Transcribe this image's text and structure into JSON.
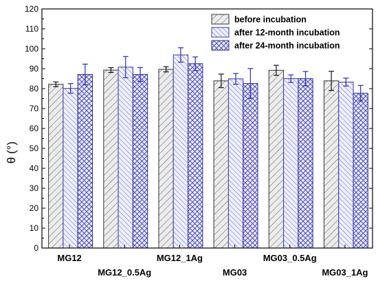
{
  "chart_data": {
    "type": "bar",
    "ylabel": "θ (°)",
    "xlabel": "",
    "ylim": [
      0,
      120
    ],
    "yticks": [
      0,
      10,
      20,
      30,
      40,
      50,
      60,
      70,
      80,
      90,
      100,
      110,
      120
    ],
    "categories": [
      "MG12",
      "MG12_0.5Ag",
      "MG12_1Ag",
      "MG03",
      "MG03_0.5Ag",
      "MG03_1Ag"
    ],
    "series": [
      {
        "name": "before incubation",
        "values": [
          82.2,
          89.3,
          89.7,
          83.9,
          89.2,
          83.9
        ],
        "errors": [
          1.2,
          1.2,
          1.3,
          3.4,
          2.5,
          4.8
        ],
        "color": "#4d4d4d"
      },
      {
        "name": "after 12-month incubation",
        "values": [
          80.1,
          90.8,
          96.9,
          84.9,
          85.0,
          83.3
        ],
        "errors": [
          2.4,
          5.3,
          3.6,
          2.7,
          1.9,
          2.0
        ],
        "color": "#4040b8"
      },
      {
        "name": "after 24-month incubation",
        "values": [
          87.1,
          87.1,
          92.5,
          82.6,
          85.0,
          77.7
        ],
        "errors": [
          5.2,
          3.5,
          3.4,
          7.5,
          3.6,
          3.9
        ],
        "color": "#202098"
      }
    ],
    "legend_position": "top-right",
    "grid": false
  }
}
